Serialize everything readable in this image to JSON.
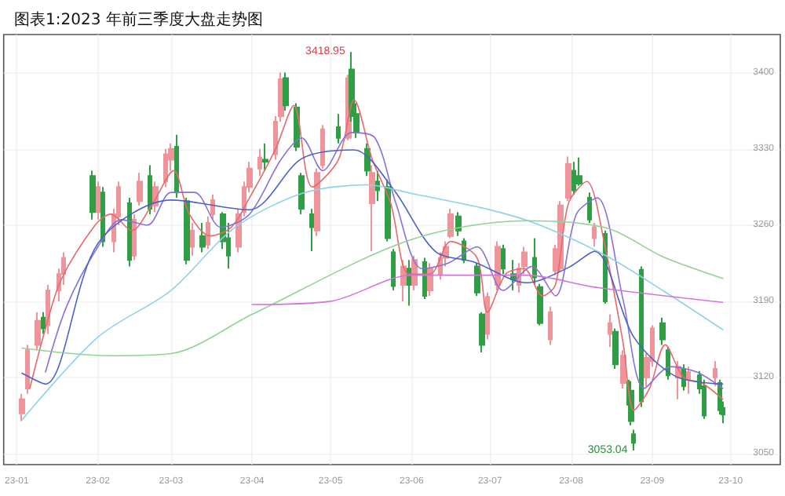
{
  "chart_data": {
    "type": "candlestick",
    "title": "图表1:2023 年前三季度大盘走势图",
    "xlim": [
      "2022-12-27",
      "2023-10-20"
    ],
    "xticks": [
      {
        "value": "2023-01-01",
        "label": "23-01"
      },
      {
        "value": "2023-02-01",
        "label": "23-02"
      },
      {
        "value": "2023-03-01",
        "label": "23-03"
      },
      {
        "value": "2023-04-01",
        "label": "23-04"
      },
      {
        "value": "2023-05-01",
        "label": "23-05"
      },
      {
        "value": "2023-06-01",
        "label": "23-06"
      },
      {
        "value": "2023-07-01",
        "label": "23-07"
      },
      {
        "value": "2023-08-01",
        "label": "23-08"
      },
      {
        "value": "2023-09-01",
        "label": "23-09"
      },
      {
        "value": "2023-10-01",
        "label": "23-10"
      }
    ],
    "ylim": [
      3040,
      3435
    ],
    "yticks": [
      3050,
      3120,
      3190,
      3260,
      3330,
      3400
    ],
    "grid": true,
    "annotations": [
      {
        "text": "3418.95",
        "x": "2023-05-09",
        "y": 3418.95
      },
      {
        "text": "3053.04",
        "x": "2023-08-25",
        "y": 3053.04
      }
    ],
    "series": [
      {
        "x": [
          "2023-01-03",
          "2023-01-05",
          "2023-01-09",
          "2023-01-11",
          "2023-01-13",
          "2023-01-17",
          "2023-01-19",
          "2023-01-30",
          "2023-02-01",
          "2023-02-03",
          "2023-02-07",
          "2023-02-09",
          "2023-02-13",
          "2023-02-15",
          "2023-02-17",
          "2023-02-21",
          "2023-02-23",
          "2023-02-27",
          "2023-03-01",
          "2023-03-03",
          "2023-03-07",
          "2023-03-09",
          "2023-03-13",
          "2023-03-15",
          "2023-03-17",
          "2023-03-21",
          "2023-03-23",
          "2023-03-27",
          "2023-03-29",
          "2023-03-31",
          "2023-04-04",
          "2023-04-06",
          "2023-04-10",
          "2023-04-12",
          "2023-04-14",
          "2023-04-18",
          "2023-04-20",
          "2023-04-24",
          "2023-04-26",
          "2023-04-28",
          "2023-05-04",
          "2023-05-08",
          "2023-05-09",
          "2023-05-11",
          "2023-05-15",
          "2023-05-17",
          "2023-05-19",
          "2023-05-23",
          "2023-05-25",
          "2023-05-29",
          "2023-05-31",
          "2023-06-02",
          "2023-06-06",
          "2023-06-08",
          "2023-06-12",
          "2023-06-14",
          "2023-06-16",
          "2023-06-19",
          "2023-06-21",
          "2023-06-26",
          "2023-06-28",
          "2023-06-30",
          "2023-07-04",
          "2023-07-06",
          "2023-07-10",
          "2023-07-12",
          "2023-07-14",
          "2023-07-18",
          "2023-07-20",
          "2023-07-24",
          "2023-07-26",
          "2023-07-28",
          "2023-07-31",
          "2023-08-02",
          "2023-08-04",
          "2023-08-08",
          "2023-08-10",
          "2023-08-14",
          "2023-08-16",
          "2023-08-18",
          "2023-08-21",
          "2023-08-23",
          "2023-08-24",
          "2023-08-25",
          "2023-08-28",
          "2023-08-30",
          "2023-09-01",
          "2023-09-05",
          "2023-09-07",
          "2023-09-11",
          "2023-09-13",
          "2023-09-15",
          "2023-09-19",
          "2023-09-21",
          "2023-09-25",
          "2023-09-27",
          "2023-09-28"
        ],
        "ohlc": [
          [
            3087,
            3105,
            3080,
            3100
          ],
          [
            3110,
            3150,
            3105,
            3145
          ],
          [
            3150,
            3180,
            3145,
            3172
          ],
          [
            3175,
            3180,
            3160,
            3165
          ],
          [
            3168,
            3205,
            3160,
            3200
          ],
          [
            3200,
            3220,
            3190,
            3215
          ],
          [
            3215,
            3235,
            3205,
            3230
          ],
          [
            3305,
            3310,
            3265,
            3272
          ],
          [
            3272,
            3300,
            3265,
            3295
          ],
          [
            3290,
            3295,
            3240,
            3245
          ],
          [
            3245,
            3275,
            3235,
            3270
          ],
          [
            3268,
            3300,
            3260,
            3295
          ],
          [
            3280,
            3285,
            3222,
            3228
          ],
          [
            3232,
            3270,
            3228,
            3265
          ],
          [
            3282,
            3308,
            3278,
            3300
          ],
          [
            3305,
            3315,
            3270,
            3275
          ],
          [
            3278,
            3300,
            3272,
            3295
          ],
          [
            3300,
            3330,
            3295,
            3325
          ],
          [
            3320,
            3335,
            3310,
            3330
          ],
          [
            3332,
            3343,
            3285,
            3290
          ],
          [
            3282,
            3285,
            3224,
            3228
          ],
          [
            3240,
            3262,
            3232,
            3255
          ],
          [
            3250,
            3262,
            3235,
            3240
          ],
          [
            3242,
            3268,
            3238,
            3262
          ],
          [
            3270,
            3288,
            3265,
            3283
          ],
          [
            3270,
            3272,
            3238,
            3245
          ],
          [
            3248,
            3262,
            3220,
            3232
          ],
          [
            3240,
            3275,
            3235,
            3270
          ],
          [
            3272,
            3300,
            3268,
            3295
          ],
          [
            3295,
            3318,
            3290,
            3312
          ],
          [
            3312,
            3330,
            3305,
            3322
          ],
          [
            3320,
            3335,
            3310,
            3318
          ],
          [
            3325,
            3360,
            3320,
            3355
          ],
          [
            3360,
            3400,
            3355,
            3394
          ],
          [
            3395,
            3400,
            3365,
            3370
          ],
          [
            3368,
            3372,
            3328,
            3332
          ],
          [
            3305,
            3308,
            3270,
            3275
          ],
          [
            3270,
            3275,
            3236,
            3258
          ],
          [
            3255,
            3312,
            3250,
            3308
          ],
          [
            3315,
            3352,
            3312,
            3348
          ],
          [
            3350,
            3362,
            3335,
            3340
          ],
          [
            3340,
            3398,
            3338,
            3395
          ],
          [
            3403,
            3418.95,
            3355,
            3360
          ],
          [
            3362,
            3372,
            3340,
            3345
          ],
          [
            3330,
            3335,
            3305,
            3310
          ],
          [
            3280,
            3315,
            3236,
            3308
          ],
          [
            3300,
            3310,
            3282,
            3292
          ],
          [
            3295,
            3302,
            3245,
            3248
          ],
          [
            3235,
            3238,
            3200,
            3204
          ],
          [
            3205,
            3228,
            3190,
            3222
          ],
          [
            3220,
            3228,
            3186,
            3205
          ],
          [
            3205,
            3232,
            3200,
            3228
          ],
          [
            3226,
            3230,
            3192,
            3195
          ],
          [
            3200,
            3225,
            3195,
            3220
          ],
          [
            3215,
            3235,
            3210,
            3230
          ],
          [
            3230,
            3245,
            3222,
            3240
          ],
          [
            3250,
            3275,
            3248,
            3270
          ],
          [
            3268,
            3272,
            3250,
            3255
          ],
          [
            3245,
            3248,
            3225,
            3228
          ],
          [
            3222,
            3225,
            3195,
            3198
          ],
          [
            3178,
            3180,
            3143,
            3150
          ],
          [
            3160,
            3198,
            3155,
            3194
          ],
          [
            3205,
            3245,
            3200,
            3240
          ],
          [
            3238,
            3242,
            3215,
            3220
          ],
          [
            3215,
            3228,
            3200,
            3210
          ],
          [
            3205,
            3225,
            3198,
            3220
          ],
          [
            3222,
            3240,
            3215,
            3235
          ],
          [
            3230,
            3248,
            3205,
            3212
          ],
          [
            3203,
            3206,
            3168,
            3170
          ],
          [
            3155,
            3185,
            3150,
            3180
          ],
          [
            3218,
            3242,
            3214,
            3238
          ],
          [
            3220,
            3282,
            3217,
            3278
          ],
          [
            3285,
            3323,
            3282,
            3316
          ],
          [
            3310,
            3318,
            3288,
            3292
          ],
          [
            3305,
            3322,
            3296,
            3298
          ],
          [
            3285,
            3290,
            3262,
            3265
          ],
          [
            3248,
            3262,
            3240,
            3258
          ],
          [
            3252,
            3255,
            3188,
            3190
          ],
          [
            3160,
            3178,
            3148,
            3170
          ],
          [
            3162,
            3165,
            3128,
            3132
          ],
          [
            3115,
            3145,
            3110,
            3140
          ],
          [
            3116,
            3118,
            3092,
            3095
          ],
          [
            3108,
            3112,
            3076,
            3080
          ],
          [
            3068,
            3072,
            3053.04,
            3060
          ],
          [
            3219,
            3222,
            3093,
            3098
          ],
          [
            3120,
            3142,
            3112,
            3138
          ],
          [
            3135,
            3168,
            3130,
            3165
          ],
          [
            3170,
            3175,
            3150,
            3155
          ],
          [
            3145,
            3148,
            3118,
            3122
          ],
          [
            3120,
            3135,
            3100,
            3130
          ],
          [
            3128,
            3132,
            3108,
            3112
          ],
          [
            3118,
            3130,
            3105,
            3125
          ],
          [
            3122,
            3126,
            3105,
            3110
          ],
          [
            3112,
            3118,
            3082,
            3085
          ],
          [
            3120,
            3135,
            3112,
            3128
          ],
          [
            3115,
            3118,
            3086,
            3090
          ],
          [
            3092,
            3098,
            3078,
            3086
          ]
        ],
        "colors": [
          "#f0949c",
          "#f0949c",
          "#f0949c",
          "#2f9e44",
          "#f0949c",
          "#f0949c",
          "#f0949c",
          "#2f9e44",
          "#f0949c",
          "#2f9e44",
          "#f0949c",
          "#f0949c",
          "#2f9e44",
          "#f0949c",
          "#f0949c",
          "#2f9e44",
          "#f0949c",
          "#f0949c",
          "#f0949c",
          "#2f9e44",
          "#2f9e44",
          "#f0949c",
          "#2f9e44",
          "#f0949c",
          "#f0949c",
          "#2f9e44",
          "#2f9e44",
          "#f0949c",
          "#f0949c",
          "#f0949c",
          "#f0949c",
          "#2f9e44",
          "#f0949c",
          "#f0949c",
          "#2f9e44",
          "#2f9e44",
          "#2f9e44",
          "#2f9e44",
          "#f0949c",
          "#f0949c",
          "#2f9e44",
          "#f0949c",
          "#2f9e44",
          "#2f9e44",
          "#2f9e44",
          "#f0949c",
          "#2f9e44",
          "#2f9e44",
          "#2f9e44",
          "#f0949c",
          "#2f9e44",
          "#f0949c",
          "#2f9e44",
          "#f0949c",
          "#f0949c",
          "#f0949c",
          "#f0949c",
          "#2f9e44",
          "#2f9e44",
          "#2f9e44",
          "#2f9e44",
          "#f0949c",
          "#f0949c",
          "#2f9e44",
          "#2f9e44",
          "#f0949c",
          "#f0949c",
          "#2f9e44",
          "#2f9e44",
          "#f0949c",
          "#f0949c",
          "#f0949c",
          "#f0949c",
          "#2f9e44",
          "#2f9e44",
          "#2f9e44",
          "#f0949c",
          "#2f9e44",
          "#f0949c",
          "#2f9e44",
          "#f0949c",
          "#2f9e44",
          "#2f9e44",
          "#2f9e44",
          "#2f9e44",
          "#f0949c",
          "#f0949c",
          "#2f9e44",
          "#2f9e44",
          "#f0949c",
          "#2f9e44",
          "#f0949c",
          "#2f9e44",
          "#2f9e44",
          "#f0949c",
          "#2f9e44",
          "#2f9e44"
        ]
      },
      {
        "type": "line",
        "color": "#e66a6a",
        "x": [
          "2023-01-06",
          "2023-01-12",
          "2023-01-18",
          "2023-01-31",
          "2023-02-06",
          "2023-02-14",
          "2023-02-22",
          "2023-03-02",
          "2023-03-08",
          "2023-03-16",
          "2023-03-24",
          "2023-03-31",
          "2023-04-10",
          "2023-04-17",
          "2023-04-24",
          "2023-05-04",
          "2023-05-10",
          "2023-05-17",
          "2023-05-24",
          "2023-05-31",
          "2023-06-08",
          "2023-06-16",
          "2023-06-26",
          "2023-06-30",
          "2023-07-07",
          "2023-07-14",
          "2023-07-21",
          "2023-07-26",
          "2023-07-31",
          "2023-08-07",
          "2023-08-14",
          "2023-08-21",
          "2023-08-25",
          "2023-08-31",
          "2023-09-06",
          "2023-09-13",
          "2023-09-20",
          "2023-09-28"
        ],
        "values": [
          3110,
          3165,
          3210,
          3260,
          3270,
          3255,
          3280,
          3310,
          3270,
          3250,
          3258,
          3285,
          3330,
          3370,
          3295,
          3320,
          3375,
          3320,
          3280,
          3215,
          3215,
          3245,
          3230,
          3180,
          3215,
          3220,
          3195,
          3205,
          3280,
          3300,
          3240,
          3150,
          3090,
          3110,
          3150,
          3120,
          3115,
          3100
        ]
      },
      {
        "type": "line",
        "color": "#8a70d8",
        "x": [
          "2023-01-12",
          "2023-01-20",
          "2023-02-01",
          "2023-02-10",
          "2023-02-20",
          "2023-03-01",
          "2023-03-10",
          "2023-03-20",
          "2023-03-31",
          "2023-04-12",
          "2023-04-20",
          "2023-04-28",
          "2023-05-09",
          "2023-05-18",
          "2023-05-26",
          "2023-06-05",
          "2023-06-15",
          "2023-06-26",
          "2023-07-06",
          "2023-07-17",
          "2023-07-26",
          "2023-08-03",
          "2023-08-11",
          "2023-08-21",
          "2023-08-29",
          "2023-09-08",
          "2023-09-18",
          "2023-09-28"
        ],
        "values": [
          3125,
          3185,
          3240,
          3265,
          3260,
          3290,
          3290,
          3258,
          3270,
          3320,
          3340,
          3310,
          3345,
          3340,
          3280,
          3220,
          3225,
          3240,
          3200,
          3222,
          3195,
          3270,
          3285,
          3190,
          3110,
          3130,
          3125,
          3110
        ]
      },
      {
        "type": "line",
        "color": "#4a62c4",
        "x": [
          "2023-01-03",
          "2023-01-12",
          "2023-02-01",
          "2023-03-01",
          "2023-03-31",
          "2023-04-20",
          "2023-05-10",
          "2023-05-25",
          "2023-06-10",
          "2023-06-25",
          "2023-07-15",
          "2023-07-31",
          "2023-08-10",
          "2023-08-25",
          "2023-09-10",
          "2023-09-28"
        ],
        "values": [
          3124,
          3114,
          3243,
          3283,
          3274,
          3321,
          3329,
          3293,
          3236,
          3226,
          3207,
          3221,
          3236,
          3157,
          3121,
          3114
        ]
      },
      {
        "type": "line",
        "color": "#8ed2ea",
        "x": [
          "2023-01-03",
          "2023-02-01",
          "2023-03-01",
          "2023-03-25",
          "2023-04-20",
          "2023-05-15",
          "2023-06-01",
          "2023-07-01",
          "2023-07-20",
          "2023-08-15",
          "2023-09-05",
          "2023-09-28"
        ],
        "values": [
          3081,
          3157,
          3200,
          3257,
          3289,
          3297,
          3289,
          3274,
          3260,
          3231,
          3200,
          3164
        ]
      },
      {
        "type": "line",
        "color": "#92d292",
        "x": [
          "2023-01-03",
          "2023-02-05",
          "2023-03-01",
          "2023-04-01",
          "2023-05-31",
          "2023-07-15",
          "2023-08-15",
          "2023-09-05",
          "2023-09-28"
        ],
        "values": [
          3147,
          3140,
          3142,
          3178,
          3246,
          3264,
          3257,
          3231,
          3211
        ]
      },
      {
        "type": "line",
        "color": "#d274dc",
        "x": [
          "2023-04-01",
          "2023-05-01",
          "2023-06-01",
          "2023-07-15",
          "2023-08-10",
          "2023-09-28"
        ],
        "values": [
          3187,
          3190,
          3214,
          3214,
          3203,
          3189
        ]
      }
    ]
  }
}
